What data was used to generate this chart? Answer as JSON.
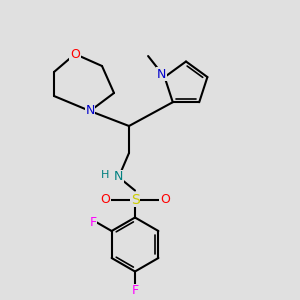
{
  "bg_color": "#e0e0e0",
  "colors": {
    "O": "#ff0000",
    "N": "#0000cc",
    "N_sulfonamide": "#008080",
    "H": "#008080",
    "S": "#cccc00",
    "F_ortho": "#ff00ff",
    "F_para": "#ff00ff",
    "C": "#000000",
    "bond": "#000000"
  }
}
